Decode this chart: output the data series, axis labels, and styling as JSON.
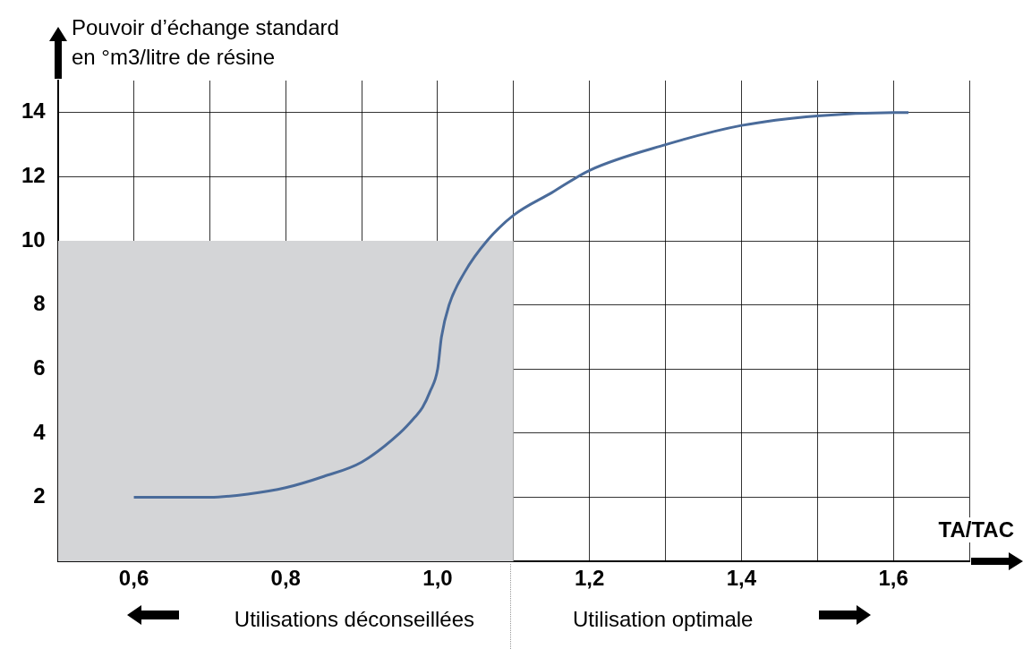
{
  "chart_data": {
    "type": "line",
    "ylabel": "Pouvoir d’échange standard\nen °m3/litre de résine",
    "xlabel": "TA/TAC",
    "xlim": [
      0.5,
      1.7
    ],
    "ylim": [
      0,
      15
    ],
    "xticks": [
      {
        "value": 0.6,
        "label": "0,6"
      },
      {
        "value": 0.7,
        "label": null
      },
      {
        "value": 0.8,
        "label": "0,8"
      },
      {
        "value": 0.9,
        "label": null
      },
      {
        "value": 1.0,
        "label": "1,0"
      },
      {
        "value": 1.1,
        "label": null
      },
      {
        "value": 1.2,
        "label": "1,2"
      },
      {
        "value": 1.3,
        "label": null
      },
      {
        "value": 1.4,
        "label": "1,4"
      },
      {
        "value": 1.5,
        "label": null
      },
      {
        "value": 1.6,
        "label": "1,6"
      },
      {
        "value": 1.7,
        "label": null
      }
    ],
    "yticks": [
      2,
      4,
      6,
      8,
      10,
      12,
      14
    ],
    "grid": true,
    "series": [
      {
        "type": "area",
        "color": "#d4d5d7",
        "x": [
          0.5,
          1.1
        ],
        "values": [
          10,
          10
        ]
      },
      {
        "type": "line",
        "color": "#4a6b9a",
        "x": [
          0.6,
          0.7,
          0.75,
          0.8,
          0.85,
          0.9,
          0.95,
          0.97,
          0.98,
          0.99,
          1.0,
          1.005,
          1.015,
          1.035,
          1.065,
          1.1,
          1.15,
          1.2,
          1.3,
          1.4,
          1.5,
          1.6,
          1.62
        ],
        "values": [
          2.0,
          2.0,
          2.1,
          2.3,
          2.65,
          3.1,
          4.0,
          4.5,
          4.8,
          5.3,
          6.0,
          7.0,
          8.0,
          9.0,
          10.0,
          10.8,
          11.5,
          12.2,
          13.0,
          13.6,
          13.9,
          14.0,
          14.0
        ]
      }
    ],
    "annotations": [
      "Utilisations déconseillées",
      "Utilisation optimale"
    ]
  }
}
